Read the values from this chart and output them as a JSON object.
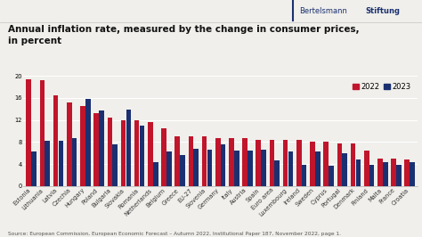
{
  "title": "Annual inflation rate, measured by the change in consumer prices,\nin percent",
  "source": "Source: European Commission, European Economic Forecast – Autumn 2022, Institutional Paper 187, November 2022, page 1.",
  "categories": [
    "Estonia",
    "Lithuania",
    "Latvia",
    "Czechia",
    "Hungary",
    "Poland",
    "Bulgaria",
    "Slovakia",
    "Romania",
    "Netherlands",
    "Belgium",
    "Greece",
    "EU-27",
    "Slovenia",
    "Germany",
    "Italy",
    "Austria",
    "Spain",
    "Euro area",
    "Luxembourg",
    "Ireland",
    "Sweden",
    "Cyprus",
    "Portugal",
    "Denmark",
    "Finland",
    "Malta",
    "France",
    "Croatia"
  ],
  "values_2022": [
    19.4,
    19.2,
    16.4,
    15.1,
    14.6,
    13.2,
    12.4,
    11.9,
    11.9,
    11.6,
    10.5,
    9.0,
    9.0,
    9.0,
    8.7,
    8.7,
    8.7,
    8.4,
    8.4,
    8.3,
    8.3,
    8.1,
    8.1,
    7.8,
    7.7,
    6.4,
    5.0,
    5.0,
    4.9
  ],
  "values_2023": [
    6.2,
    8.2,
    8.2,
    8.7,
    15.8,
    13.7,
    7.5,
    13.8,
    11.0,
    4.3,
    6.2,
    5.6,
    6.8,
    6.6,
    7.6,
    6.4,
    6.5,
    6.6,
    4.6,
    6.3,
    3.9,
    6.2,
    3.7,
    5.9,
    4.9,
    3.8,
    4.3,
    3.9,
    4.4
  ],
  "color_2022": "#c0152b",
  "color_2023": "#1a3070",
  "background_color": "#f0efeb",
  "ylim": [
    0,
    20
  ],
  "yticks": [
    0,
    4,
    8,
    12,
    16,
    20
  ],
  "title_fontsize": 7.5,
  "tick_fontsize": 4.8,
  "legend_fontsize": 6.0,
  "source_fontsize": 4.2,
  "branding_normal": "Bertelsmann",
  "branding_bold": "Stiftung"
}
